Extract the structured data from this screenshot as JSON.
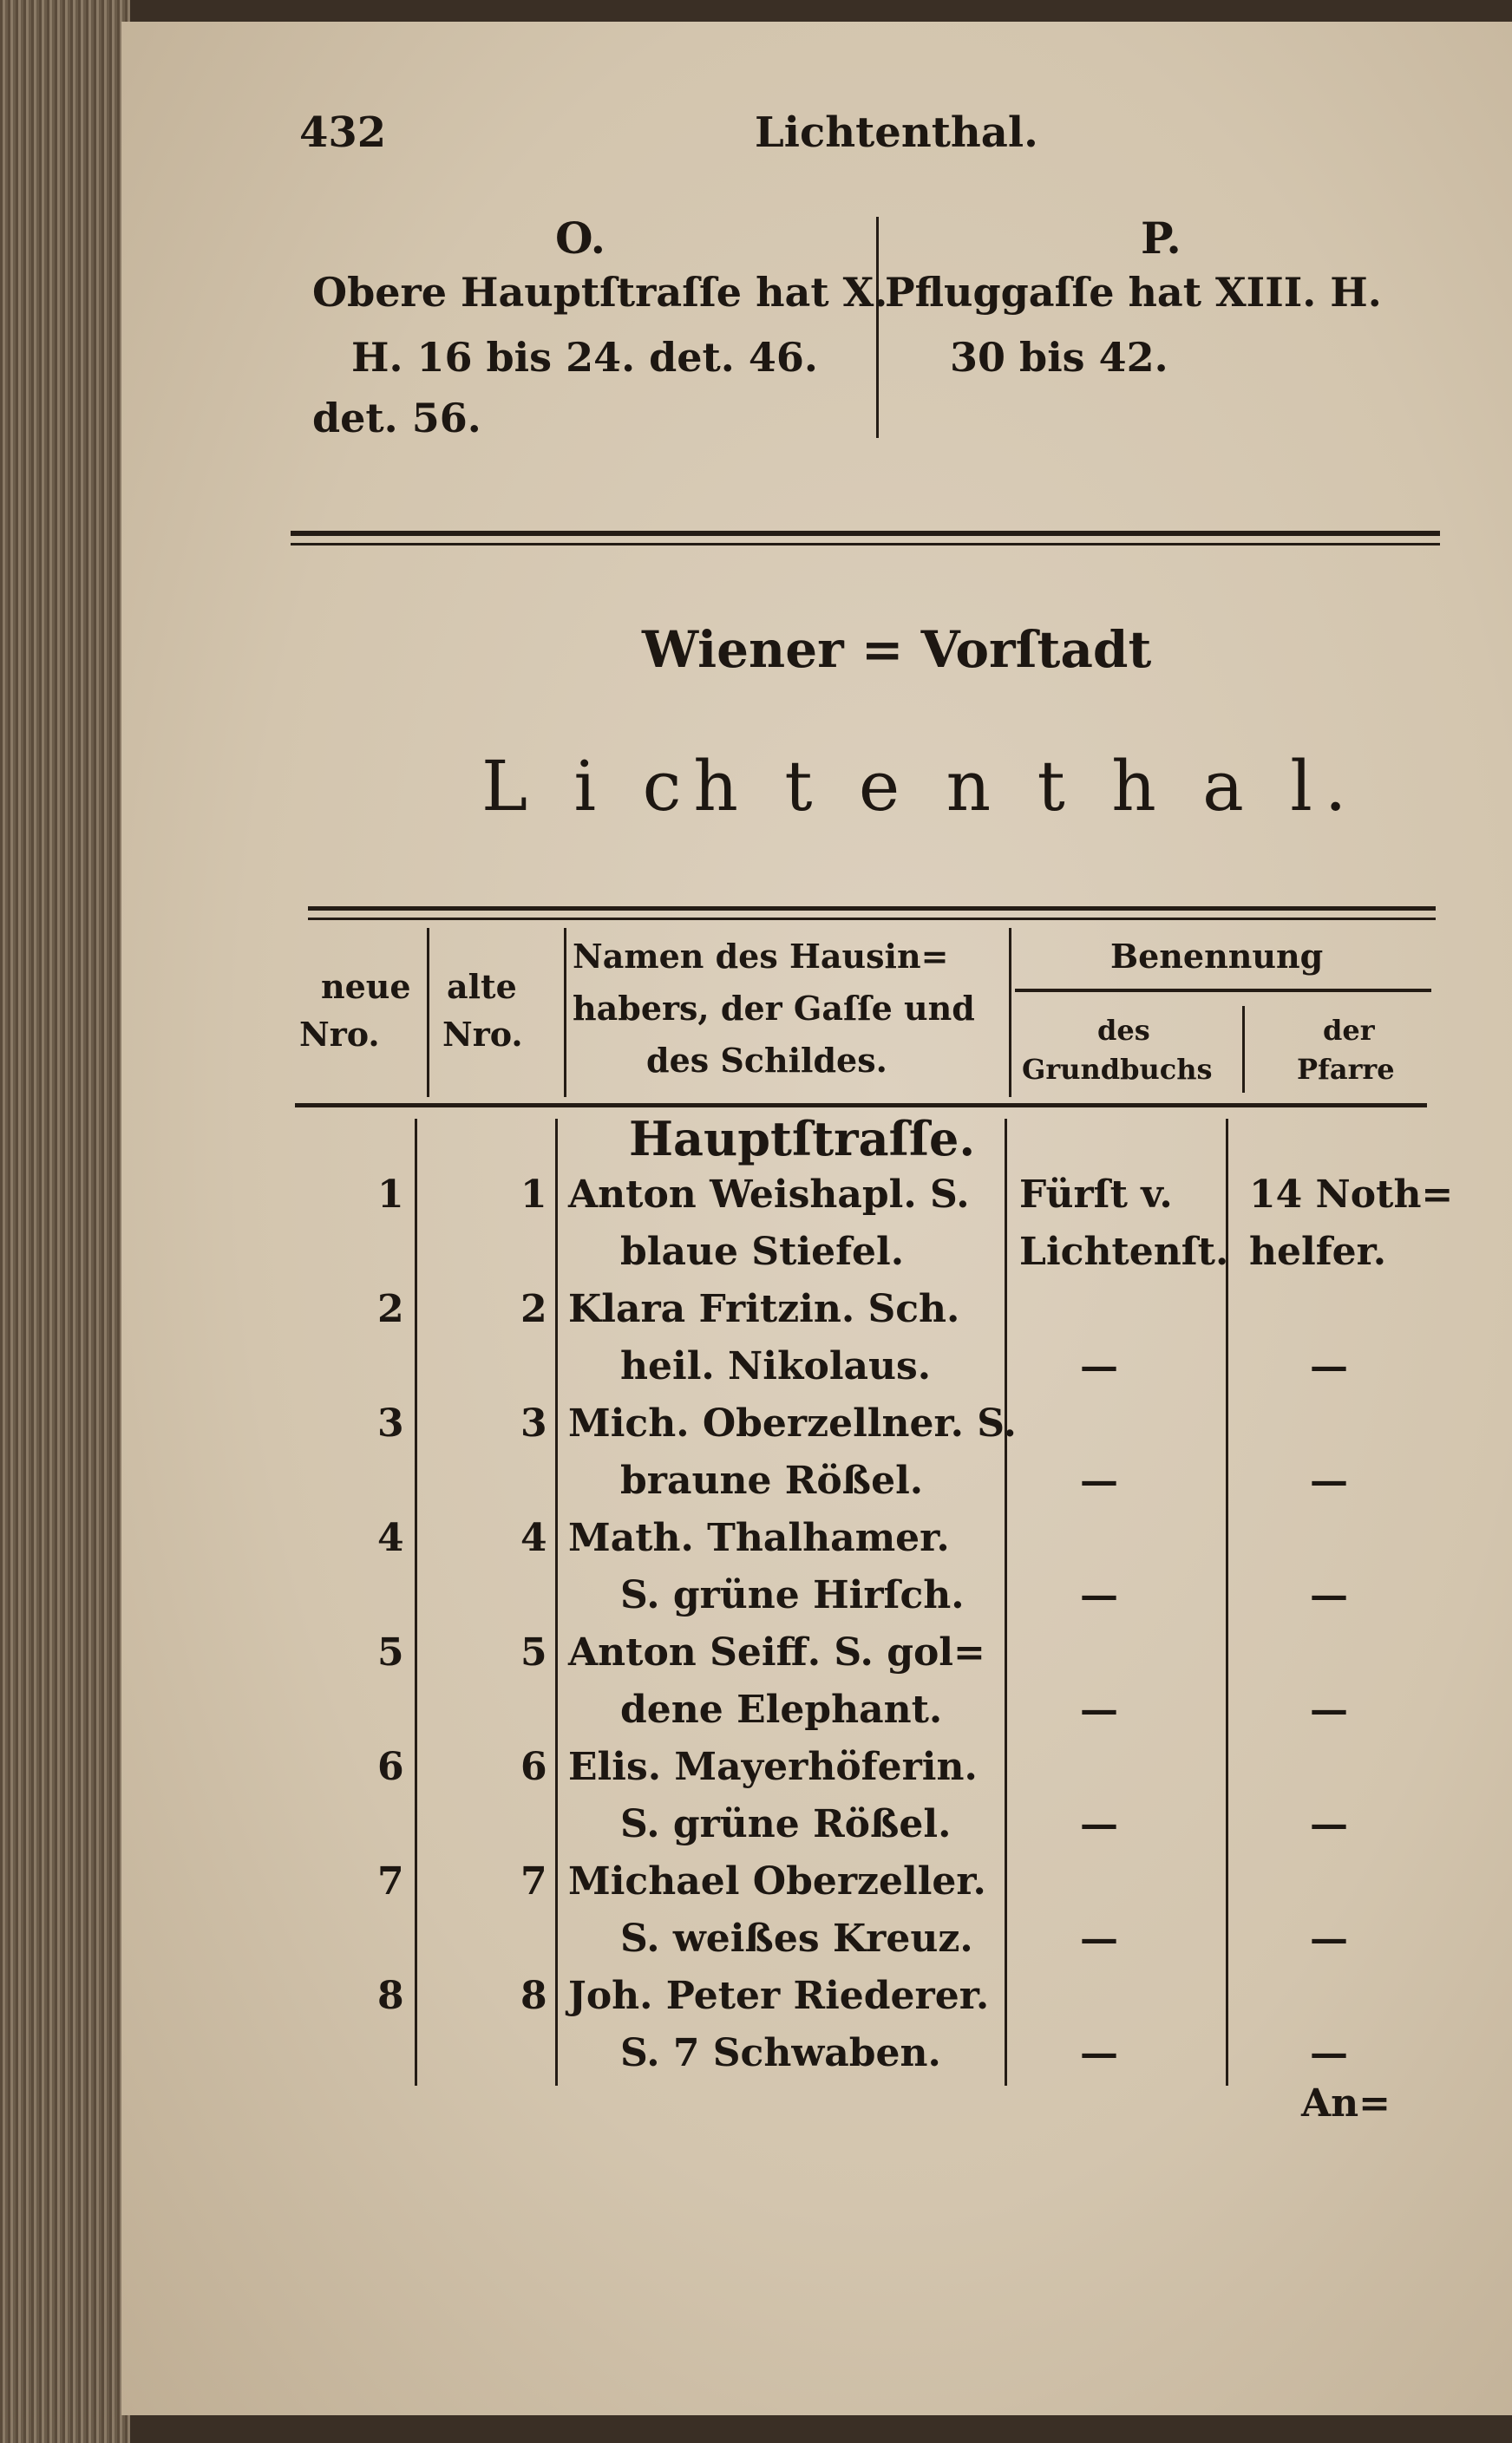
{
  "running_head": {
    "page_number": "432",
    "title": "Lichtenthal."
  },
  "sections": [
    {
      "letter": "O.",
      "lines": [
        "Obere Hauptſtraſſe hat X.",
        "H. 16 bis 24. det. 46.",
        "det. 56."
      ]
    },
    {
      "letter": "P.",
      "lines": [
        "Pfluggaſſe hat XIII. H.",
        "30 bis 42."
      ]
    }
  ],
  "heading": {
    "district": "Wiener = Vorſtadt",
    "place": "L i ch t e n t h a l."
  },
  "table": {
    "headers": {
      "neue": [
        "neue",
        "Nro."
      ],
      "alte": [
        "alte",
        "Nro."
      ],
      "name": [
        "Namen des Hausin=",
        "habers, der Gaſſe und",
        "des Schildes."
      ],
      "benennung": "Benennung",
      "grundbuch": [
        "des",
        "Grundbuchs"
      ],
      "pfarre": [
        "der",
        "Pfarre"
      ]
    },
    "street": "Hauptſtraſſe.",
    "rows": [
      {
        "neue": "1",
        "alte": "1",
        "name": [
          "Anton Weishapl. S.",
          "blaue Stiefel."
        ],
        "grundbuch": [
          "Fürſt v.",
          "Lichtenſt."
        ],
        "pfarre": [
          "14 Noth=",
          "helfer."
        ]
      },
      {
        "neue": "2",
        "alte": "2",
        "name": [
          "Klara Fritzin. Sch.",
          "heil. Nikolaus."
        ],
        "grundbuch": [
          "",
          "—"
        ],
        "pfarre": [
          "",
          "—"
        ]
      },
      {
        "neue": "3",
        "alte": "3",
        "name": [
          "Mich. Oberzellner. S.",
          "braune Rößel."
        ],
        "grundbuch": [
          "",
          "—"
        ],
        "pfarre": [
          "",
          "—"
        ]
      },
      {
        "neue": "4",
        "alte": "4",
        "name": [
          "Math. Thalhamer.",
          "S. grüne Hirſch."
        ],
        "grundbuch": [
          "",
          "—"
        ],
        "pfarre": [
          "",
          "—"
        ]
      },
      {
        "neue": "5",
        "alte": "5",
        "name": [
          "Anton Seiff. S. gol=",
          "dene Elephant."
        ],
        "grundbuch": [
          "",
          "—"
        ],
        "pfarre": [
          "",
          "—"
        ]
      },
      {
        "neue": "6",
        "alte": "6",
        "name": [
          "Elis. Mayerhöferin.",
          "S. grüne Rößel."
        ],
        "grundbuch": [
          "",
          "—"
        ],
        "pfarre": [
          "",
          "—"
        ]
      },
      {
        "neue": "7",
        "alte": "7",
        "name": [
          "Michael Oberzeller.",
          "S. weißes Kreuz."
        ],
        "grundbuch": [
          "",
          "—"
        ],
        "pfarre": [
          "",
          "—"
        ]
      },
      {
        "neue": "8",
        "alte": "8",
        "name": [
          "Joh. Peter Riederer.",
          "S. 7 Schwaben."
        ],
        "grundbuch": [
          "",
          "—"
        ],
        "pfarre": [
          "",
          "—"
        ]
      }
    ]
  },
  "catchword": "An="
}
